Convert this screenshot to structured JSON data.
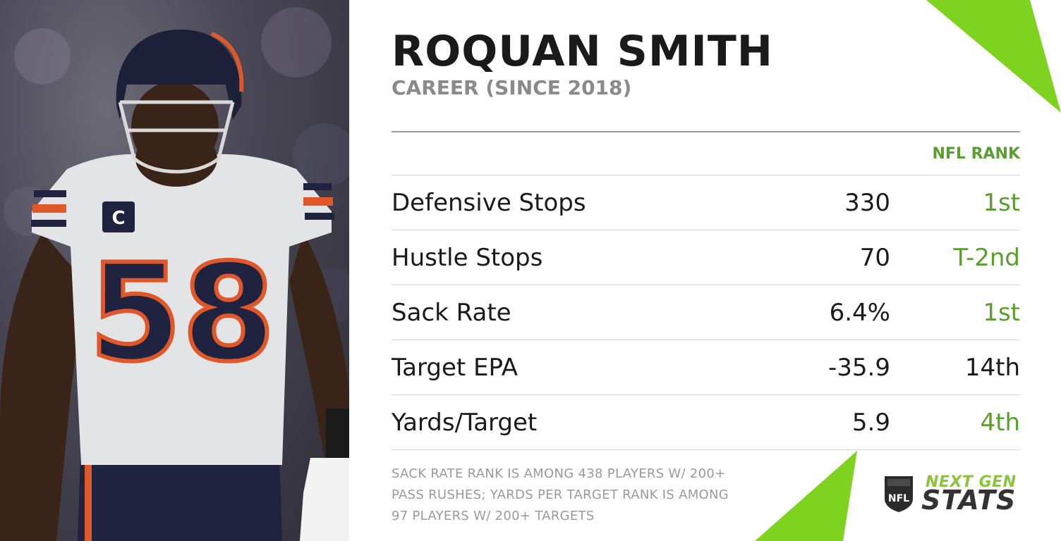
{
  "player": {
    "name": "ROQUAN SMITH",
    "subtitle": "CAREER (SINCE 2018)",
    "jersey_number": "58",
    "captain_patch": "C"
  },
  "table": {
    "rank_header": "NFL RANK",
    "rows": [
      {
        "label": "Defensive Stops",
        "value": "330",
        "rank": "1st",
        "rank_color": "#5a9e2f"
      },
      {
        "label": "Hustle Stops",
        "value": "70",
        "rank": "T-2nd",
        "rank_color": "#5a9e2f"
      },
      {
        "label": "Sack Rate",
        "value": "6.4%",
        "rank": "1st",
        "rank_color": "#5a9e2f"
      },
      {
        "label": "Target EPA",
        "value": "-35.9",
        "rank": "14th",
        "rank_color": "#1a1a1a"
      },
      {
        "label": "Yards/Target",
        "value": "5.9",
        "rank": "4th",
        "rank_color": "#5a9e2f"
      }
    ]
  },
  "footnote": {
    "lines": [
      "SACK RATE RANK IS AMONG 438 PLAYERS W/ 200+",
      "PASS RUSHES; YARDS PER TARGET RANK IS AMONG",
      "97 PLAYERS W/ 200+ TARGETS"
    ]
  },
  "logo": {
    "nfl_text": "NFL",
    "line1": "NEXT GEN",
    "line2": "STATS"
  },
  "colors": {
    "accent_green": "#7ed321",
    "rank_green": "#5a9e2f",
    "text_dark": "#1a1a1a",
    "text_gray": "#8a8a8a",
    "jersey_orange": "#e0572a",
    "jersey_navy": "#1f2340"
  }
}
